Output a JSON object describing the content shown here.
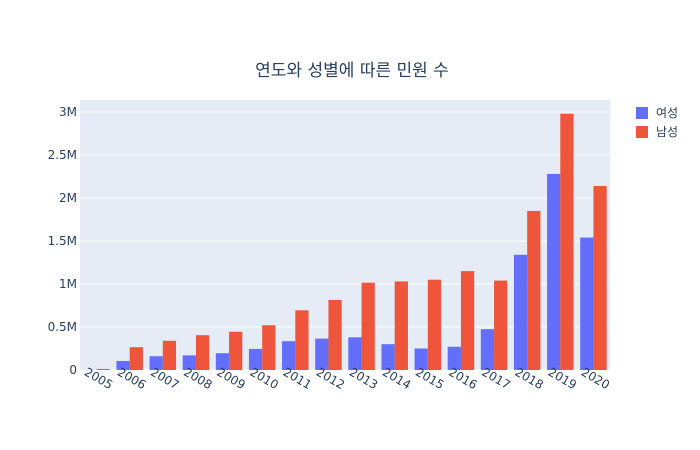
{
  "chart_data": {
    "type": "bar",
    "title": "연도와 성별에 따른 민원 수",
    "categories": [
      "2005",
      "2006",
      "2007",
      "2008",
      "2009",
      "2010",
      "2011",
      "2012",
      "2013",
      "2014",
      "2015",
      "2016",
      "2017",
      "2018",
      "2019",
      "2020"
    ],
    "series": [
      {
        "name": "여성",
        "color": "#636efa",
        "values": [
          2000,
          105000,
          160000,
          170000,
          195000,
          245000,
          335000,
          365000,
          380000,
          300000,
          250000,
          270000,
          475000,
          1340000,
          2280000,
          1540000
        ]
      },
      {
        "name": "남성",
        "color": "#ef553b",
        "values": [
          12000,
          265000,
          340000,
          405000,
          445000,
          520000,
          695000,
          815000,
          1015000,
          1030000,
          1050000,
          1150000,
          1040000,
          1850000,
          2980000,
          2140000
        ]
      }
    ],
    "yticks": [
      {
        "value": 0,
        "label": "0"
      },
      {
        "value": 500000,
        "label": "0.5M"
      },
      {
        "value": 1000000,
        "label": "1M"
      },
      {
        "value": 1500000,
        "label": "1.5M"
      },
      {
        "value": 2000000,
        "label": "2M"
      },
      {
        "value": 2500000,
        "label": "2.5M"
      },
      {
        "value": 3000000,
        "label": "3M"
      }
    ],
    "ylim": [
      0,
      3140000
    ],
    "grid": true,
    "legend_position": "top-right",
    "plot_background": "#e5ecf6"
  }
}
